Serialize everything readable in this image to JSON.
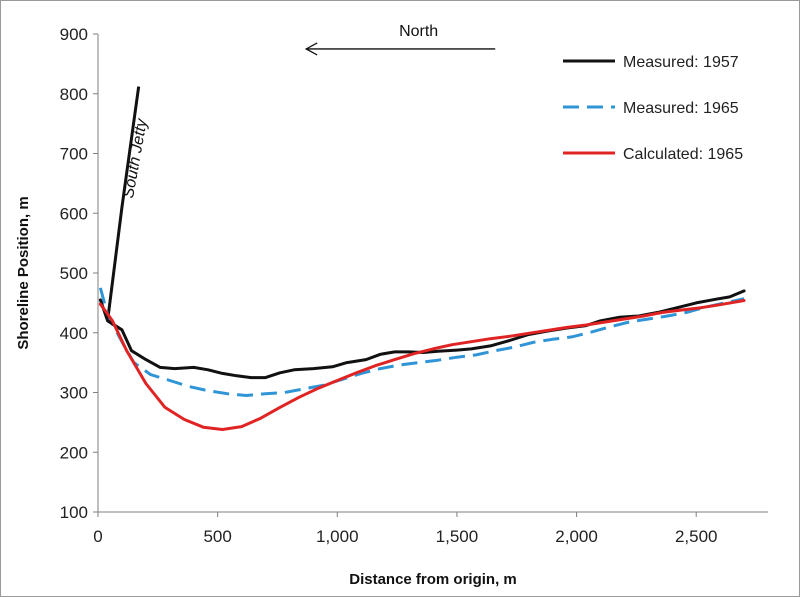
{
  "chart_data": {
    "type": "line",
    "title": "",
    "xlabel": "Distance from origin, m",
    "ylabel": "Shoreline Position, m",
    "xlim": [
      0,
      2800
    ],
    "ylim": [
      100,
      900
    ],
    "x_ticks": [
      0,
      500,
      1000,
      1500,
      2000,
      2500
    ],
    "x_tick_labels": [
      "0",
      "500",
      "1,000",
      "1,500",
      "2,000",
      "2,500"
    ],
    "y_ticks": [
      100,
      200,
      300,
      400,
      500,
      600,
      700,
      800,
      900
    ],
    "y_tick_labels": [
      "100",
      "200",
      "300",
      "400",
      "500",
      "600",
      "700",
      "800",
      "900"
    ],
    "grid": false,
    "legend_position": "top-right",
    "series": [
      {
        "name": "Measured: 1957",
        "color": "#111111",
        "style": "solid",
        "points": [
          [
            10,
            455
          ],
          [
            40,
            420
          ],
          [
            100,
            405
          ],
          [
            140,
            370
          ],
          [
            200,
            355
          ],
          [
            260,
            342
          ],
          [
            320,
            340
          ],
          [
            400,
            342
          ],
          [
            460,
            338
          ],
          [
            520,
            332
          ],
          [
            580,
            328
          ],
          [
            640,
            325
          ],
          [
            700,
            325
          ],
          [
            760,
            333
          ],
          [
            820,
            338
          ],
          [
            900,
            340
          ],
          [
            980,
            343
          ],
          [
            1040,
            350
          ],
          [
            1120,
            355
          ],
          [
            1180,
            364
          ],
          [
            1240,
            368
          ],
          [
            1300,
            368
          ],
          [
            1360,
            367
          ],
          [
            1420,
            369
          ],
          [
            1500,
            371
          ],
          [
            1560,
            373
          ],
          [
            1640,
            378
          ],
          [
            1720,
            387
          ],
          [
            1800,
            397
          ],
          [
            1880,
            403
          ],
          [
            1960,
            408
          ],
          [
            2040,
            412
          ],
          [
            2100,
            420
          ],
          [
            2180,
            426
          ],
          [
            2260,
            428
          ],
          [
            2340,
            434
          ],
          [
            2420,
            442
          ],
          [
            2500,
            450
          ],
          [
            2580,
            456
          ],
          [
            2640,
            460
          ],
          [
            2700,
            470
          ]
        ]
      },
      {
        "name": "Measured: 1965",
        "color": "#2f95d6",
        "style": "dashed",
        "points": [
          [
            10,
            475
          ],
          [
            40,
            430
          ],
          [
            100,
            385
          ],
          [
            150,
            350
          ],
          [
            220,
            330
          ],
          [
            300,
            320
          ],
          [
            380,
            310
          ],
          [
            460,
            303
          ],
          [
            540,
            298
          ],
          [
            620,
            295
          ],
          [
            700,
            298
          ],
          [
            780,
            300
          ],
          [
            860,
            306
          ],
          [
            940,
            312
          ],
          [
            1020,
            322
          ],
          [
            1100,
            332
          ],
          [
            1180,
            340
          ],
          [
            1260,
            346
          ],
          [
            1340,
            350
          ],
          [
            1420,
            354
          ],
          [
            1500,
            359
          ],
          [
            1580,
            363
          ],
          [
            1660,
            370
          ],
          [
            1740,
            376
          ],
          [
            1820,
            384
          ],
          [
            1900,
            389
          ],
          [
            1980,
            393
          ],
          [
            2060,
            401
          ],
          [
            2140,
            410
          ],
          [
            2220,
            418
          ],
          [
            2300,
            423
          ],
          [
            2380,
            428
          ],
          [
            2460,
            434
          ],
          [
            2540,
            443
          ],
          [
            2620,
            450
          ],
          [
            2700,
            457
          ]
        ]
      },
      {
        "name": "Calculated: 1965",
        "color": "#e02424",
        "style": "solid",
        "points": [
          [
            10,
            448
          ],
          [
            60,
            420
          ],
          [
            120,
            370
          ],
          [
            200,
            315
          ],
          [
            280,
            275
          ],
          [
            360,
            255
          ],
          [
            440,
            242
          ],
          [
            520,
            238
          ],
          [
            600,
            243
          ],
          [
            680,
            257
          ],
          [
            760,
            275
          ],
          [
            840,
            292
          ],
          [
            920,
            307
          ],
          [
            1000,
            320
          ],
          [
            1080,
            333
          ],
          [
            1160,
            345
          ],
          [
            1240,
            355
          ],
          [
            1320,
            365
          ],
          [
            1400,
            373
          ],
          [
            1480,
            380
          ],
          [
            1560,
            385
          ],
          [
            1640,
            390
          ],
          [
            1720,
            394
          ],
          [
            1800,
            399
          ],
          [
            1880,
            404
          ],
          [
            1960,
            409
          ],
          [
            2040,
            413
          ],
          [
            2120,
            418
          ],
          [
            2200,
            423
          ],
          [
            2280,
            428
          ],
          [
            2360,
            434
          ],
          [
            2440,
            438
          ],
          [
            2520,
            442
          ],
          [
            2600,
            447
          ],
          [
            2700,
            454
          ]
        ]
      }
    ],
    "annotations": [
      {
        "name": "south-jetty-line",
        "type": "line",
        "points": [
          [
            40,
            420
          ],
          [
            100,
            610
          ],
          [
            170,
            812
          ]
        ]
      },
      {
        "name": "south-jetty-label",
        "type": "text",
        "text": "South Jetty",
        "at": [
          175,
          690
        ]
      },
      {
        "name": "north-arrow",
        "type": "arrow",
        "from": [
          1660,
          875
        ],
        "to": [
          870,
          875
        ]
      },
      {
        "name": "north-label",
        "type": "text",
        "text": "North",
        "at": [
          1340,
          905
        ]
      }
    ]
  }
}
